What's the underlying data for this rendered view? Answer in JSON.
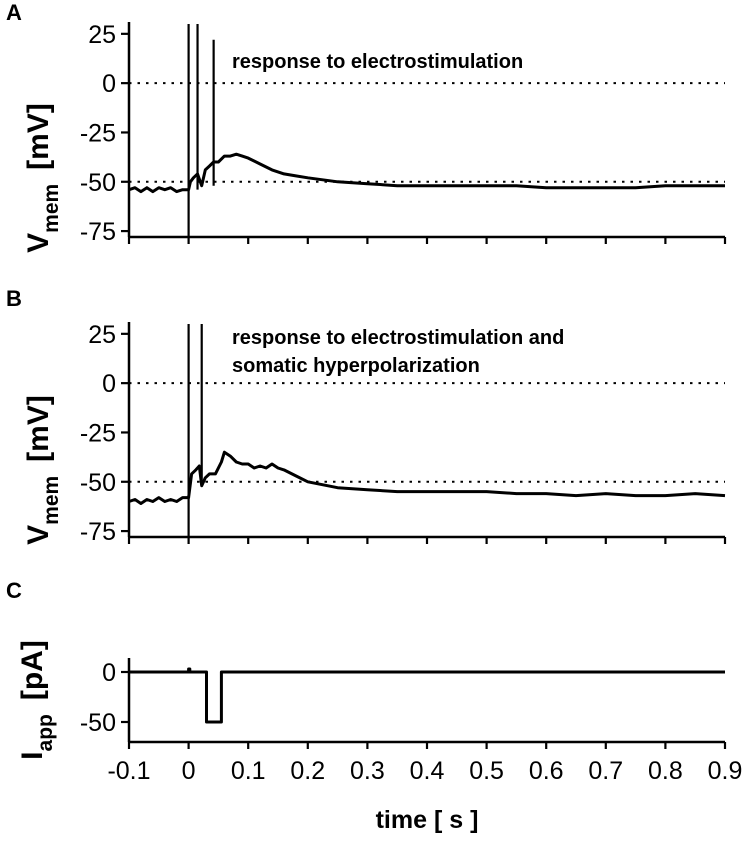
{
  "chart_data": [
    {
      "panel": "A",
      "type": "line",
      "title": "",
      "annotation": "response to electrostimulation",
      "ylabel_main": "V",
      "ylabel_sub": "mem",
      "ylabel_unit": "[mV]",
      "xlabel": "",
      "ylim": [
        -78,
        31
      ],
      "xlim": [
        -0.1,
        0.9
      ],
      "yticks": [
        25,
        0,
        -25,
        -50,
        -75
      ],
      "ytick_labels": [
        "25",
        "0",
        "-25",
        "-50",
        "-75"
      ],
      "reference_lines": [
        0,
        -50
      ],
      "series": [
        {
          "x": [
            -0.1,
            -0.09,
            -0.08,
            -0.07,
            -0.06,
            -0.05,
            -0.04,
            -0.03,
            -0.02,
            -0.01,
            0.0,
            0.003,
            0.008,
            0.015,
            0.022,
            0.028,
            0.035,
            0.042,
            0.05,
            0.06,
            0.07,
            0.08,
            0.09,
            0.1,
            0.12,
            0.14,
            0.16,
            0.18,
            0.2,
            0.25,
            0.3,
            0.35,
            0.4,
            0.45,
            0.5,
            0.55,
            0.6,
            0.65,
            0.7,
            0.75,
            0.8,
            0.85,
            0.9
          ],
          "y": [
            -54,
            -53,
            -55,
            -53,
            -55,
            -53,
            -54,
            -53,
            -55,
            -54,
            -54,
            -50,
            -48,
            -46,
            -52,
            -44,
            -42,
            -40,
            -40,
            -37,
            -37,
            -36,
            -37,
            -38,
            -41,
            -44,
            -46,
            -47,
            -48,
            -50,
            -51,
            -52,
            -52,
            -52,
            -52,
            -52,
            -53,
            -53,
            -53,
            -53,
            -52,
            -52,
            -52
          ]
        }
      ],
      "spikes": [
        {
          "x": 0.0,
          "top": 30,
          "bottom": -78
        },
        {
          "x": 0.015,
          "top": 30,
          "bottom": -54
        },
        {
          "x": 0.042,
          "top": 22,
          "bottom": -52
        }
      ]
    },
    {
      "panel": "B",
      "type": "line",
      "title": "",
      "annotation_lines": [
        "response to electrostimulation and",
        "somatic hyperpolarization"
      ],
      "ylabel_main": "V",
      "ylabel_sub": "mem",
      "ylabel_unit": "[mV]",
      "xlabel": "",
      "ylim": [
        -78,
        31
      ],
      "xlim": [
        -0.1,
        0.9
      ],
      "yticks": [
        25,
        0,
        -25,
        -50,
        -75
      ],
      "ytick_labels": [
        "25",
        "0",
        "-25",
        "-50",
        "-75"
      ],
      "reference_lines": [
        0,
        -50
      ],
      "series": [
        {
          "x": [
            -0.1,
            -0.09,
            -0.08,
            -0.07,
            -0.06,
            -0.05,
            -0.04,
            -0.03,
            -0.02,
            -0.01,
            0.0,
            0.005,
            0.012,
            0.018,
            0.022,
            0.028,
            0.035,
            0.045,
            0.055,
            0.06,
            0.07,
            0.08,
            0.09,
            0.1,
            0.11,
            0.12,
            0.13,
            0.14,
            0.15,
            0.16,
            0.18,
            0.2,
            0.25,
            0.3,
            0.35,
            0.4,
            0.45,
            0.5,
            0.55,
            0.6,
            0.65,
            0.7,
            0.75,
            0.8,
            0.85,
            0.9
          ],
          "y": [
            -60,
            -59,
            -61,
            -59,
            -60,
            -58,
            -60,
            -59,
            -60,
            -58,
            -58,
            -46,
            -44,
            -42,
            -52,
            -48,
            -46,
            -46,
            -40,
            -35,
            -37,
            -40,
            -41,
            -41,
            -43,
            -42,
            -43,
            -41,
            -43,
            -44,
            -47,
            -50,
            -53,
            -54,
            -55,
            -55,
            -55,
            -55,
            -56,
            -56,
            -57,
            -56,
            -57,
            -57,
            -56,
            -57
          ]
        }
      ],
      "spikes": [
        {
          "x": 0.0,
          "top": 30,
          "bottom": -78
        },
        {
          "x": 0.022,
          "top": 30,
          "bottom": -52
        }
      ]
    },
    {
      "panel": "C",
      "type": "line",
      "title": "",
      "ylabel_main": "I",
      "ylabel_sub": "app",
      "ylabel_unit": "[pA]",
      "xlabel": "time [ s ]",
      "ylim": [
        -70,
        14
      ],
      "xlim": [
        -0.1,
        0.9
      ],
      "yticks": [
        0,
        -50
      ],
      "ytick_labels": [
        "0",
        "-50"
      ],
      "xticks": [
        -0.1,
        0,
        0.1,
        0.2,
        0.3,
        0.4,
        0.5,
        0.6,
        0.7,
        0.8,
        0.9
      ],
      "xtick_labels": [
        "-0.1",
        "0",
        "0.1",
        "0.2",
        "0.3",
        "0.4",
        "0.5",
        "0.6",
        "0.7",
        "0.8",
        "0.9"
      ],
      "series": [
        {
          "x": [
            -0.1,
            0.0,
            0.0,
            0.002,
            0.002,
            0.03,
            0.03,
            0.055,
            0.055,
            0.9
          ],
          "y": [
            0,
            0,
            3,
            3,
            0,
            0,
            -50,
            -50,
            0,
            0
          ]
        }
      ]
    }
  ]
}
